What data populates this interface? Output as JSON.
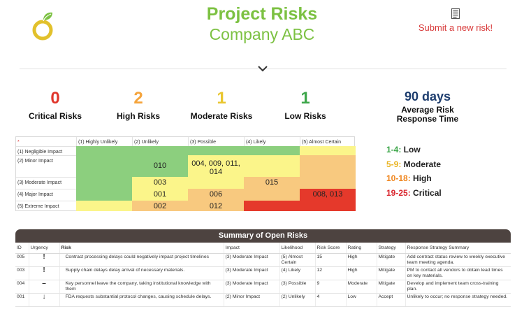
{
  "header": {
    "title": "Project Risks",
    "subtitle": "Company ABC",
    "submit_label": "Submit a new risk!",
    "submit_icon": "document-icon",
    "logo_icon": "leaf-logo-icon",
    "chevron_icon": "chevron-down-icon"
  },
  "stats": {
    "critical": {
      "value": "0",
      "label": "Critical Risks",
      "color": "#e0352b"
    },
    "high": {
      "value": "2",
      "label": "High Risks",
      "color": "#f5a43c"
    },
    "moderate": {
      "value": "1",
      "label": "Moderate Risks",
      "color": "#e9c62f"
    },
    "low": {
      "value": "1",
      "label": "Low Risks",
      "color": "#3da64a"
    },
    "response": {
      "value": "90 days",
      "label": "Average Risk Response Time"
    }
  },
  "matrix": {
    "corner": "*",
    "likelihood": [
      "(1) Highly Unlikely",
      "(2) Unlikely",
      "(3) Possible",
      "(4) Likely",
      "(5) Almost Certain"
    ],
    "impact": [
      "(1) Negligible Impact",
      "(2) Minor Impact",
      "(3) Moderate Impact",
      "(4) Major Impact",
      "(5) Extreme Impact"
    ],
    "cells": [
      [
        "",
        "",
        "",
        "",
        ""
      ],
      [
        "",
        "010",
        "004, 009, 011, 014",
        "",
        ""
      ],
      [
        "",
        "003",
        "",
        "015",
        ""
      ],
      [
        "",
        "001",
        "006",
        "",
        "008, 013"
      ],
      [
        "",
        "002",
        "012",
        "",
        ""
      ]
    ],
    "levels": [
      [
        "low",
        "low",
        "low",
        "low",
        "moderate"
      ],
      [
        "low",
        "low",
        "moderate",
        "moderate",
        "high"
      ],
      [
        "low",
        "moderate",
        "moderate",
        "high",
        "high"
      ],
      [
        "low",
        "moderate",
        "high",
        "high",
        "critical"
      ],
      [
        "moderate",
        "high",
        "high",
        "critical",
        "critical"
      ]
    ],
    "colors": {
      "low": "#8ccf7e",
      "moderate": "#fbf58a",
      "high": "#f8c97f",
      "critical": "#e5392b"
    }
  },
  "legend": [
    {
      "range": "1-4:",
      "label": "Low",
      "color": "#3da64a"
    },
    {
      "range": "5-9:",
      "label": "Moderate",
      "color": "#e9b422"
    },
    {
      "range": "10-18:",
      "label": "High",
      "color": "#f0861e"
    },
    {
      "range": "19-25:",
      "label": "Critical",
      "color": "#d9262e"
    }
  ],
  "summary": {
    "title": "Summary of Open Risks",
    "columns": [
      "ID",
      "Urgency",
      "Risk",
      "Impact",
      "Likelihood",
      "Risk Score",
      "Rating",
      "Strategy",
      "Response Strategy Summary"
    ],
    "rows": [
      {
        "id": "005",
        "urgency": "!",
        "urgency_level": "high",
        "risk": "Contract processing delays could negatively impact project timelines",
        "impact": "(3) Moderate Impact",
        "likelihood": "(5) Almost Certain",
        "score": "15",
        "rating": "High",
        "strategy": "Mitigate",
        "summary": "Add contract status review to weekly executive team meeting agenda."
      },
      {
        "id": "003",
        "urgency": "!",
        "urgency_level": "high",
        "risk": "Supply chain delays delay arrival of necessary materials.",
        "impact": "(3) Moderate Impact",
        "likelihood": "(4) Likely",
        "score": "12",
        "rating": "High",
        "strategy": "Mitigate",
        "summary": "PM to contact all vendors to obtain lead times on key materials."
      },
      {
        "id": "004",
        "urgency": "–",
        "urgency_level": "mod",
        "risk": "Key personnel leave the company, taking institutional knowledge with them",
        "impact": "(3) Moderate Impact",
        "likelihood": "(3) Possible",
        "score": "9",
        "rating": "Moderate",
        "strategy": "Mitigate",
        "summary": "Develop and implement team cross-training plan."
      },
      {
        "id": "001",
        "urgency": "↓",
        "urgency_level": "low",
        "risk": "FDA requests substantial protocol changes, causing schedule delays.",
        "impact": "(2) Minor Impact",
        "likelihood": "(2) Unlikely",
        "score": "4",
        "rating": "Low",
        "strategy": "Accept",
        "summary": "Unlikely to occur; no response strategy needed."
      }
    ]
  }
}
